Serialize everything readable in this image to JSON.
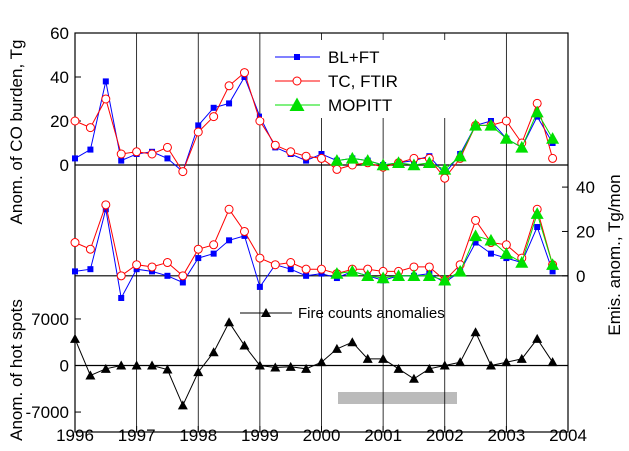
{
  "chart_data": [
    {
      "type": "line",
      "ylabel": "Anom. of CO burden, Tg",
      "ylim": [
        -10,
        60
      ],
      "yticks": [
        0,
        20,
        40,
        60
      ],
      "legend": "top-center",
      "x": [
        1996,
        1996.25,
        1996.5,
        1996.75,
        1997,
        1997.25,
        1997.5,
        1997.75,
        1998,
        1998.25,
        1998.5,
        1998.75,
        1999,
        1999.25,
        1999.5,
        1999.75,
        2000,
        2000.25,
        2000.5,
        2000.75,
        2001,
        2001.25,
        2001.5,
        2001.75,
        2002,
        2002.25,
        2002.5,
        2002.75,
        2003,
        2003.25,
        2003.5,
        2003.75
      ],
      "series": [
        {
          "name": "BL+FT",
          "color": "#0000ff",
          "marker": "square",
          "values": [
            3,
            7,
            38,
            2,
            5,
            6,
            3,
            -3,
            18,
            26,
            28,
            40,
            22,
            8,
            5,
            2,
            5,
            2,
            3,
            2,
            0,
            1,
            2,
            4,
            -4,
            5,
            18,
            20,
            12,
            8,
            22,
            10
          ]
        },
        {
          "name": "TC, FTIR",
          "color": "#ff0000",
          "marker": "circle",
          "values": [
            20,
            17,
            30,
            5,
            6,
            5,
            8,
            -3,
            15,
            22,
            36,
            42,
            20,
            9,
            6,
            4,
            3,
            -2,
            0,
            1,
            -1,
            1,
            3,
            3,
            -6,
            3,
            18,
            18,
            20,
            10,
            28,
            3
          ]
        },
        {
          "name": "MOPITT",
          "color": "#00e000",
          "marker": "triangle",
          "values": [
            null,
            null,
            null,
            null,
            null,
            null,
            null,
            null,
            null,
            null,
            null,
            null,
            null,
            null,
            null,
            null,
            null,
            2,
            3,
            2,
            0,
            1,
            0,
            1,
            -2,
            4,
            18,
            18,
            12,
            8,
            24,
            12
          ]
        }
      ]
    },
    {
      "type": "line",
      "y2label": "Emis. anom., Tg/mon",
      "ylim": [
        -10,
        45
      ],
      "yticks": [
        0,
        20,
        40
      ],
      "x": [
        1996,
        1996.25,
        1996.5,
        1996.75,
        1997,
        1997.25,
        1997.5,
        1997.75,
        1998,
        1998.25,
        1998.5,
        1998.75,
        1999,
        1999.25,
        1999.5,
        1999.75,
        2000,
        2000.25,
        2000.5,
        2000.75,
        2001,
        2001.25,
        2001.5,
        2001.75,
        2002,
        2002.25,
        2002.5,
        2002.75,
        2003,
        2003.25,
        2003.5,
        2003.75
      ],
      "series": [
        {
          "color": "#0000ff",
          "marker": "square",
          "values": [
            2,
            3,
            30,
            -10,
            3,
            2,
            0,
            -3,
            8,
            10,
            16,
            18,
            -5,
            5,
            3,
            0,
            1,
            -1,
            2,
            0,
            -2,
            0,
            0,
            1,
            -3,
            2,
            15,
            10,
            8,
            6,
            22,
            2
          ]
        },
        {
          "color": "#ff0000",
          "marker": "circle",
          "values": [
            15,
            12,
            32,
            0,
            5,
            4,
            6,
            0,
            12,
            14,
            30,
            20,
            8,
            5,
            6,
            3,
            3,
            1,
            3,
            3,
            2,
            2,
            4,
            4,
            -2,
            5,
            25,
            15,
            14,
            8,
            30,
            5
          ]
        },
        {
          "color": "#00e000",
          "marker": "triangle",
          "values": [
            null,
            null,
            null,
            null,
            null,
            null,
            null,
            null,
            null,
            null,
            null,
            null,
            null,
            null,
            null,
            null,
            null,
            1,
            2,
            0,
            -1,
            0,
            0,
            0,
            -2,
            2,
            18,
            16,
            10,
            6,
            28,
            5
          ]
        }
      ]
    },
    {
      "type": "line",
      "ylabel": "Anom. of hot spots",
      "ylim": [
        -10000,
        10000
      ],
      "yticks": [
        -7000,
        0,
        7000
      ],
      "xlim": [
        1996,
        2004
      ],
      "xticks": [
        1996,
        1997,
        1998,
        1999,
        2000,
        2001,
        2002,
        2003,
        2004
      ],
      "x": [
        1996,
        1996.25,
        1996.5,
        1996.75,
        1997,
        1997.25,
        1997.5,
        1997.75,
        1998,
        1998.25,
        1998.5,
        1998.75,
        1999,
        1999.25,
        1999.5,
        1999.75,
        2000,
        2000.25,
        2000.5,
        2000.75,
        2001,
        2001.25,
        2001.5,
        2001.75,
        2002,
        2002.25,
        2002.5,
        2002.75,
        2003,
        2003.25,
        2003.5,
        2003.75
      ],
      "series": [
        {
          "name": "Fire counts anomalies",
          "color": "#000000",
          "marker": "triangle",
          "values": [
            4000,
            -1500,
            -500,
            0,
            0,
            0,
            -600,
            -6000,
            -1000,
            2000,
            6500,
            3000,
            0,
            -300,
            -200,
            -500,
            500,
            2500,
            3500,
            1000,
            1000,
            -500,
            -2000,
            -500,
            0,
            500,
            5000,
            0,
            500,
            1000,
            4000,
            500
          ]
        }
      ]
    }
  ]
}
